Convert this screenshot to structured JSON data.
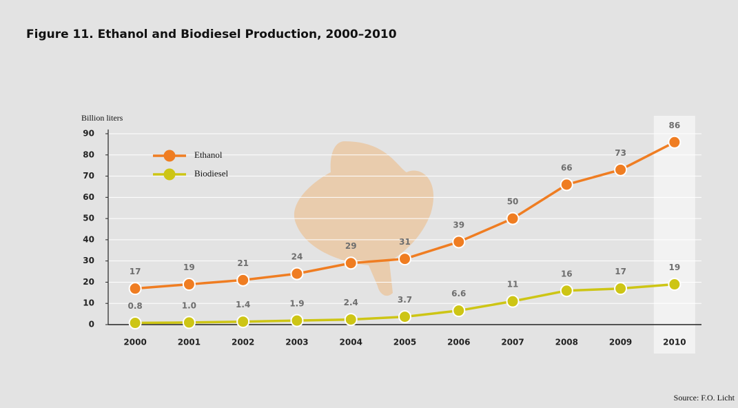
{
  "chart_data": {
    "type": "line",
    "title": "Figure 11. Ethanol and Biodiesel Production, 2000–2010",
    "y_label": "Billion liters",
    "source": "Source: F.O. Licht",
    "categories": [
      "2000",
      "2001",
      "2002",
      "2003",
      "2004",
      "2005",
      "2006",
      "2007",
      "2008",
      "2009",
      "2010"
    ],
    "series": [
      {
        "name": "Ethanol",
        "color": "#ef7d22",
        "values": [
          17,
          19,
          21,
          24,
          29,
          31,
          39,
          50,
          66,
          73,
          86
        ]
      },
      {
        "name": "Biodiesel",
        "color": "#cdc515",
        "values": [
          0.8,
          1.0,
          1.4,
          1.9,
          2.4,
          3.7,
          6.6,
          11,
          16,
          17,
          19
        ],
        "value_labels": [
          "0.8",
          "1.0",
          "1.4",
          "1.9",
          "2.4",
          "3.7",
          "6.6",
          "11",
          "16",
          "17",
          "19"
        ]
      }
    ],
    "ylim": [
      0,
      92
    ],
    "yticks": [
      0,
      10,
      20,
      30,
      40,
      50,
      60,
      70,
      80,
      90
    ],
    "grid": true
  }
}
